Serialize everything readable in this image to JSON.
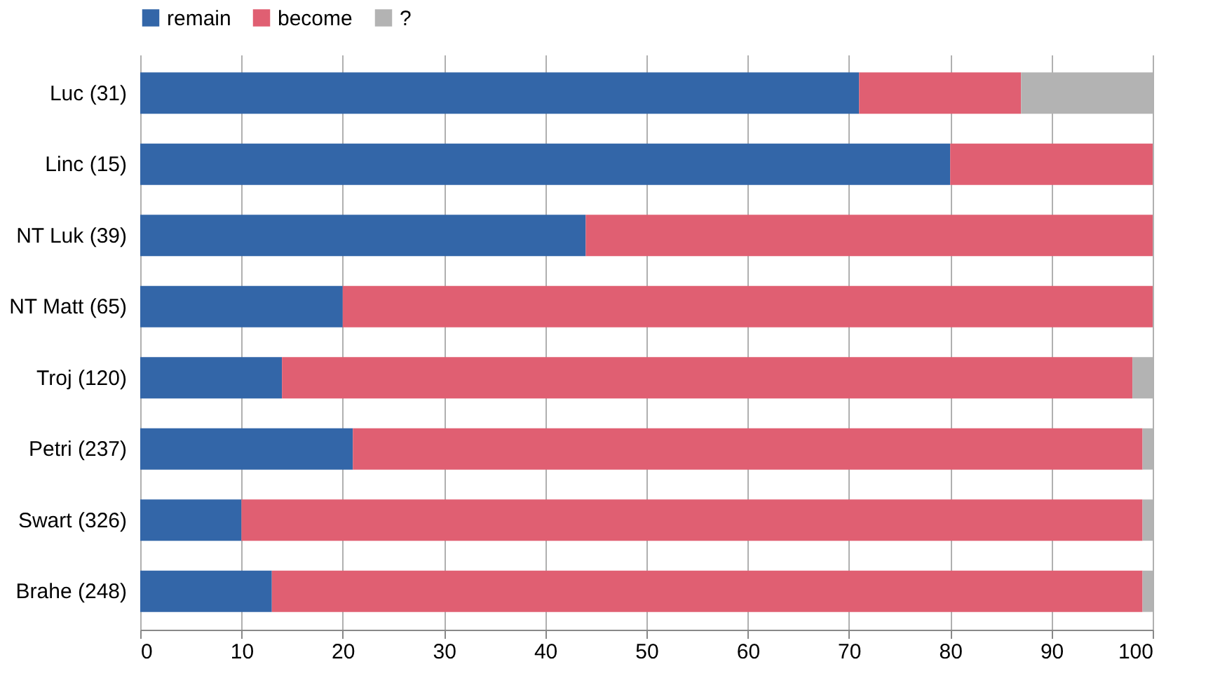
{
  "chart_data": {
    "type": "bar",
    "orientation": "horizontal",
    "stacked": true,
    "categories": [
      "Luc (31)",
      "Linc (15)",
      "NT Luk (39)",
      "NT Matt (65)",
      "Troj (120)",
      "Petri (237)",
      "Swart (326)",
      "Brahe (248)"
    ],
    "series": [
      {
        "name": "remain",
        "color": "#3366a8",
        "values": [
          71,
          80,
          44,
          20,
          14,
          21,
          10,
          13
        ]
      },
      {
        "name": "become",
        "color": "#e05f72",
        "values": [
          16,
          20,
          56,
          80,
          84,
          78,
          89,
          86
        ]
      },
      {
        "name": "?",
        "color": "#b3b3b3",
        "values": [
          13,
          0,
          0,
          0,
          2,
          1,
          1,
          1
        ]
      }
    ],
    "xlim": [
      0,
      100
    ],
    "xticks": [
      0,
      10,
      20,
      30,
      40,
      50,
      60,
      70,
      80,
      90,
      100
    ],
    "grid": "x",
    "legend": "top"
  }
}
